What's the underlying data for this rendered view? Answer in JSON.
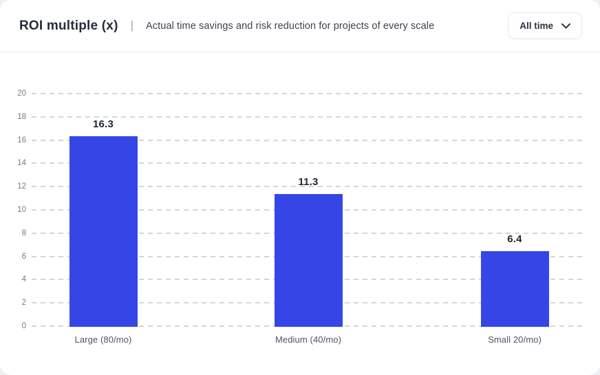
{
  "header": {
    "title": "ROI multiple (x)",
    "separator": "|",
    "subtitle": "Actual time savings and risk reduction for projects of every scale",
    "filter": {
      "label": "All time",
      "icon": "chevron-down-icon"
    }
  },
  "colors": {
    "bar": "#3646E6",
    "grid": "#D2D6DC",
    "title_text": "#262C3A",
    "value_label_text": "#1F2531",
    "axis_text": "#737A87"
  },
  "chart_data": {
    "type": "bar",
    "categories": [
      "Large (80/mo)",
      "Medium (40/mo)",
      "Small 20/mo)"
    ],
    "values": [
      16.3,
      11.3,
      6.4
    ],
    "value_labels": [
      "16.3",
      "11.3",
      "6.4"
    ],
    "title": "ROI multiple (x)",
    "subtitle": "Actual time savings and risk reduction for projects of every scale",
    "xlabel": "",
    "ylabel": "",
    "ylim": [
      0,
      20
    ],
    "ytick_step": 2,
    "grid": "horizontal-dashed",
    "legend": "none",
    "bar_color": "#3646E6"
  }
}
